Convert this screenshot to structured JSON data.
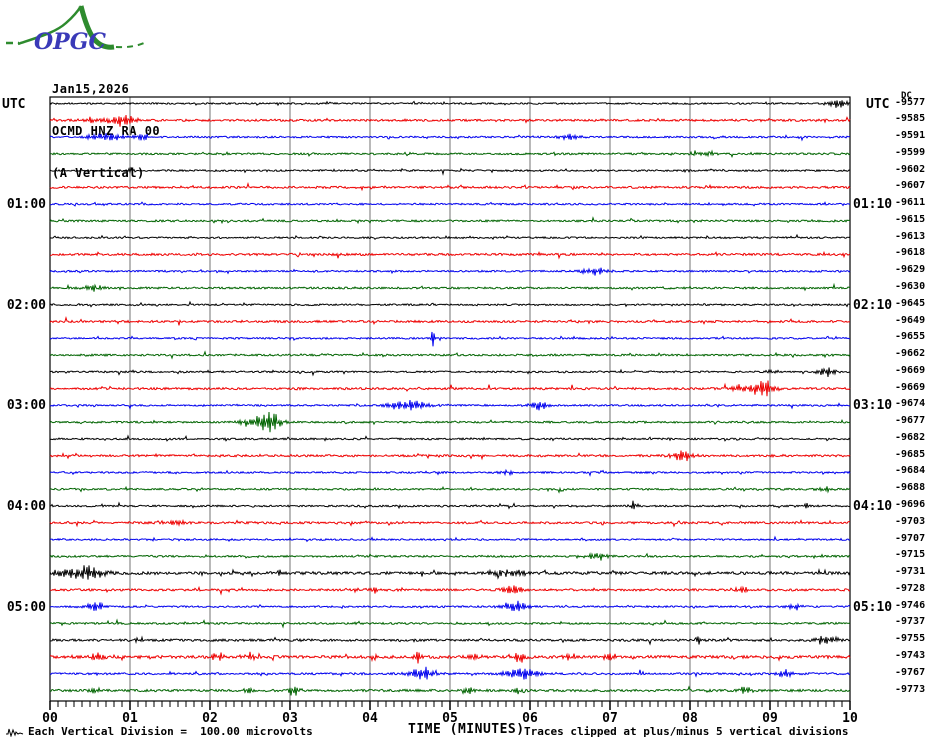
{
  "logo": {
    "text": "OPGC",
    "text_color": "#3a3ab8",
    "brush_color": "#2e8b2e"
  },
  "header": {
    "date": "Jan15,2026",
    "station": "OCMD HNZ RA 00",
    "component": "(A Vertical)"
  },
  "axis_left_title": "UTC",
  "axis_right_title": "UTC",
  "dc_label": "DC",
  "footer": {
    "scale_note": "Each Vertical Division =  100.00 microvolts",
    "xaxis_title": "TIME (MINUTES)",
    "clip_note": "Traces clipped at plus/minus 5 vertical divisions"
  },
  "chart_data": {
    "type": "line",
    "kind": "helicorder-seismogram",
    "title": "OCMD HNZ RA 00 (A Vertical) Jan15,2026",
    "xlabel": "TIME (MINUTES)",
    "x_range_minutes": [
      0,
      10
    ],
    "x_tick_labels": [
      "00",
      "01",
      "02",
      "03",
      "04",
      "05",
      "06",
      "07",
      "08",
      "09",
      "10"
    ],
    "minor_ticks_per_minute": 10,
    "minutes_per_row": 10,
    "vertical_division_microvolts": 100.0,
    "clip_divisions": 5,
    "grid": true,
    "grid_color": "#8a8a8a",
    "trace_color_cycle": [
      "#000000",
      "#ee0000",
      "#0000ee",
      "#006400"
    ],
    "rows": [
      {
        "start": "00:00",
        "end": "00:10",
        "dc": -9577,
        "left": "",
        "right": "",
        "noise": 0.55,
        "events": [
          [
            9.85,
            1.5,
            8
          ]
        ]
      },
      {
        "start": "00:10",
        "end": "00:20",
        "dc": -9585,
        "left": "",
        "right": "",
        "noise": 0.75,
        "events": [
          [
            0.9,
            2.2,
            10
          ],
          [
            0.55,
            1.0,
            8
          ]
        ]
      },
      {
        "start": "00:20",
        "end": "00:30",
        "dc": -9591,
        "left": "",
        "right": "",
        "noise": 0.6,
        "events": [
          [
            0.7,
            1.2,
            16
          ],
          [
            1.15,
            1.5,
            5
          ],
          [
            6.5,
            0.9,
            8
          ]
        ]
      },
      {
        "start": "00:30",
        "end": "00:40",
        "dc": -9599,
        "left": "",
        "right": "",
        "noise": 0.65,
        "events": [
          [
            8.2,
            0.9,
            8
          ]
        ]
      },
      {
        "start": "00:40",
        "end": "00:50",
        "dc": -9602,
        "left": "",
        "right": "",
        "noise": 0.6,
        "events": [
          [
            1.0,
            1.2,
            3
          ]
        ]
      },
      {
        "start": "00:50",
        "end": "01:00",
        "dc": -9607,
        "left": "",
        "right": "",
        "noise": 0.75,
        "events": []
      },
      {
        "start": "01:00",
        "end": "01:10",
        "dc": -9611,
        "left": "01:00",
        "right": "01:10",
        "noise": 0.6,
        "events": []
      },
      {
        "start": "01:10",
        "end": "01:20",
        "dc": -9615,
        "left": "",
        "right": "",
        "noise": 0.65,
        "events": []
      },
      {
        "start": "01:20",
        "end": "01:30",
        "dc": -9613,
        "left": "",
        "right": "",
        "noise": 0.6,
        "events": []
      },
      {
        "start": "01:30",
        "end": "01:40",
        "dc": -9618,
        "left": "",
        "right": "",
        "noise": 0.75,
        "events": []
      },
      {
        "start": "01:40",
        "end": "01:50",
        "dc": -9629,
        "left": "",
        "right": "",
        "noise": 0.6,
        "events": [
          [
            6.8,
            1.2,
            10
          ]
        ]
      },
      {
        "start": "01:50",
        "end": "02:00",
        "dc": -9630,
        "left": "",
        "right": "",
        "noise": 0.65,
        "events": [
          [
            0.55,
            1.2,
            8
          ]
        ]
      },
      {
        "start": "02:00",
        "end": "02:10",
        "dc": -9645,
        "left": "02:00",
        "right": "02:10",
        "noise": 0.6,
        "events": []
      },
      {
        "start": "02:10",
        "end": "02:20",
        "dc": -9649,
        "left": "",
        "right": "",
        "noise": 0.75,
        "events": []
      },
      {
        "start": "02:20",
        "end": "02:30",
        "dc": -9655,
        "left": "",
        "right": "",
        "noise": 0.6,
        "events": [
          [
            4.78,
            2.8,
            2
          ]
        ]
      },
      {
        "start": "02:30",
        "end": "02:40",
        "dc": -9662,
        "left": "",
        "right": "",
        "noise": 0.65,
        "events": []
      },
      {
        "start": "02:40",
        "end": "02:50",
        "dc": -9669,
        "left": "",
        "right": "",
        "noise": 0.6,
        "events": [
          [
            9.7,
            1.5,
            8
          ],
          [
            9.05,
            0.8,
            6
          ]
        ]
      },
      {
        "start": "02:50",
        "end": "03:00",
        "dc": -9669,
        "left": "",
        "right": "",
        "noise": 0.75,
        "events": [
          [
            8.9,
            3.0,
            9
          ],
          [
            8.6,
            1.2,
            8
          ]
        ]
      },
      {
        "start": "03:00",
        "end": "03:10",
        "dc": -9674,
        "left": "03:00",
        "right": "03:10",
        "noise": 0.6,
        "events": [
          [
            4.55,
            1.8,
            11
          ],
          [
            6.1,
            1.8,
            8
          ],
          [
            4.3,
            0.9,
            9
          ]
        ]
      },
      {
        "start": "03:10",
        "end": "03:20",
        "dc": -9677,
        "left": "",
        "right": "",
        "noise": 0.65,
        "events": [
          [
            2.75,
            3.3,
            8
          ],
          [
            2.55,
            1.5,
            11
          ]
        ]
      },
      {
        "start": "03:20",
        "end": "03:30",
        "dc": -9682,
        "left": "",
        "right": "",
        "noise": 0.6,
        "events": []
      },
      {
        "start": "03:30",
        "end": "03:40",
        "dc": -9685,
        "left": "",
        "right": "",
        "noise": 0.75,
        "events": [
          [
            7.9,
            1.8,
            8
          ]
        ]
      },
      {
        "start": "03:40",
        "end": "03:50",
        "dc": -9684,
        "left": "",
        "right": "",
        "noise": 0.6,
        "events": [
          [
            5.7,
            0.9,
            6
          ]
        ]
      },
      {
        "start": "03:50",
        "end": "04:00",
        "dc": -9688,
        "left": "",
        "right": "",
        "noise": 0.65,
        "events": [
          [
            9.7,
            0.9,
            6
          ]
        ]
      },
      {
        "start": "04:00",
        "end": "04:10",
        "dc": -9696,
        "left": "04:00",
        "right": "04:10",
        "noise": 0.6,
        "events": [
          [
            7.3,
            1.8,
            3
          ],
          [
            9.45,
            0.9,
            3
          ]
        ]
      },
      {
        "start": "04:10",
        "end": "04:20",
        "dc": -9703,
        "left": "",
        "right": "",
        "noise": 0.75,
        "events": [
          [
            1.6,
            0.9,
            6
          ]
        ]
      },
      {
        "start": "04:20",
        "end": "04:30",
        "dc": -9707,
        "left": "",
        "right": "",
        "noise": 0.6,
        "events": []
      },
      {
        "start": "04:30",
        "end": "04:40",
        "dc": -9715,
        "left": "",
        "right": "",
        "noise": 0.65,
        "events": [
          [
            6.85,
            1.2,
            9
          ]
        ]
      },
      {
        "start": "04:40",
        "end": "04:50",
        "dc": -9731,
        "left": "",
        "right": "",
        "noise": 1.0,
        "events": [
          [
            0.5,
            2.4,
            11
          ],
          [
            0.2,
            1.2,
            15
          ],
          [
            2.85,
            1.8,
            2
          ],
          [
            5.7,
            1.2,
            15
          ]
        ]
      },
      {
        "start": "04:50",
        "end": "05:00",
        "dc": -9728,
        "left": "",
        "right": "",
        "noise": 0.75,
        "events": [
          [
            5.8,
            1.8,
            9
          ],
          [
            4.05,
            0.9,
            5
          ],
          [
            8.65,
            1.2,
            6
          ]
        ]
      },
      {
        "start": "05:00",
        "end": "05:10",
        "dc": -9746,
        "left": "05:00",
        "right": "05:10",
        "noise": 0.6,
        "events": [
          [
            0.55,
            1.5,
            8
          ],
          [
            5.8,
            1.8,
            9
          ],
          [
            9.3,
            0.9,
            6
          ]
        ]
      },
      {
        "start": "05:10",
        "end": "05:20",
        "dc": -9737,
        "left": "",
        "right": "",
        "noise": 0.65,
        "events": []
      },
      {
        "start": "05:20",
        "end": "05:30",
        "dc": -9755,
        "left": "",
        "right": "",
        "noise": 0.8,
        "events": [
          [
            8.1,
            1.5,
            2
          ],
          [
            9.7,
            1.5,
            8
          ],
          [
            1.1,
            0.9,
            5
          ]
        ]
      },
      {
        "start": "05:30",
        "end": "05:40",
        "dc": -9743,
        "left": "",
        "right": "",
        "noise": 1.0,
        "events": [
          [
            0.6,
            1.5,
            6
          ],
          [
            2.1,
            1.5,
            5
          ],
          [
            2.5,
            1.8,
            3
          ],
          [
            4.05,
            1.2,
            3
          ],
          [
            4.6,
            2.1,
            3
          ],
          [
            5.3,
            1.5,
            5
          ],
          [
            5.85,
            1.8,
            6
          ],
          [
            6.5,
            1.2,
            5
          ],
          [
            7.0,
            1.2,
            5
          ]
        ]
      },
      {
        "start": "05:40",
        "end": "05:50",
        "dc": -9767,
        "left": "",
        "right": "",
        "noise": 0.7,
        "events": [
          [
            4.65,
            2.1,
            10
          ],
          [
            5.9,
            2.4,
            11
          ],
          [
            9.2,
            1.2,
            6
          ]
        ]
      },
      {
        "start": "05:50",
        "end": "06:00",
        "dc": -9773,
        "left": "",
        "right": "",
        "noise": 0.8,
        "events": [
          [
            0.55,
            1.2,
            5
          ],
          [
            2.5,
            0.9,
            6
          ],
          [
            3.05,
            1.8,
            4
          ],
          [
            5.25,
            1.5,
            4
          ],
          [
            5.85,
            1.2,
            4
          ],
          [
            8.7,
            1.2,
            5
          ]
        ]
      }
    ]
  }
}
